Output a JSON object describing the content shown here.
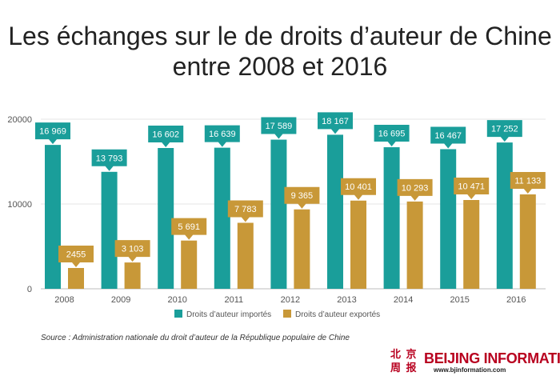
{
  "chart_data": {
    "type": "bar",
    "title": "Les échanges sur le de droits d’auteur de Chine entre 2008 et 2016",
    "categories": [
      "2008",
      "2009",
      "2010",
      "2011",
      "2012",
      "2013",
      "2014",
      "2015",
      "2016"
    ],
    "series": [
      {
        "name": "Droits d’auteur importés",
        "color": "#1a9e9a",
        "values": [
          16969,
          13793,
          16602,
          16639,
          17589,
          18167,
          16695,
          16467,
          17252
        ],
        "labels": [
          "16 969",
          "13 793",
          "16 602",
          "16 639",
          "17 589",
          "18 167",
          "16 695",
          "16 467",
          "17 252"
        ]
      },
      {
        "name": "Droits d’auteur exportés",
        "color": "#c89838",
        "values": [
          2455,
          3103,
          5691,
          7783,
          9365,
          10401,
          10293,
          10471,
          11133
        ],
        "labels": [
          "2455",
          "3 103",
          "5 691",
          "7 783",
          "9 365",
          "10 401",
          "10 293",
          "10 471",
          "11 133"
        ]
      }
    ],
    "ylim": [
      0,
      20000
    ],
    "yticks": [
      0,
      10000,
      20000
    ],
    "yticklabels": [
      "0",
      "10000",
      "20000"
    ],
    "grid": true,
    "legend": "bottom",
    "xlabel": "",
    "ylabel": ""
  },
  "source": "Source : Administration nationale du droit d’auteur de la République populaire de Chine",
  "logo": {
    "seal_top": "北 京",
    "seal_bottom": "周 报",
    "name": "BEIJING INFORMATION",
    "url": "www.bjinformation.com"
  }
}
